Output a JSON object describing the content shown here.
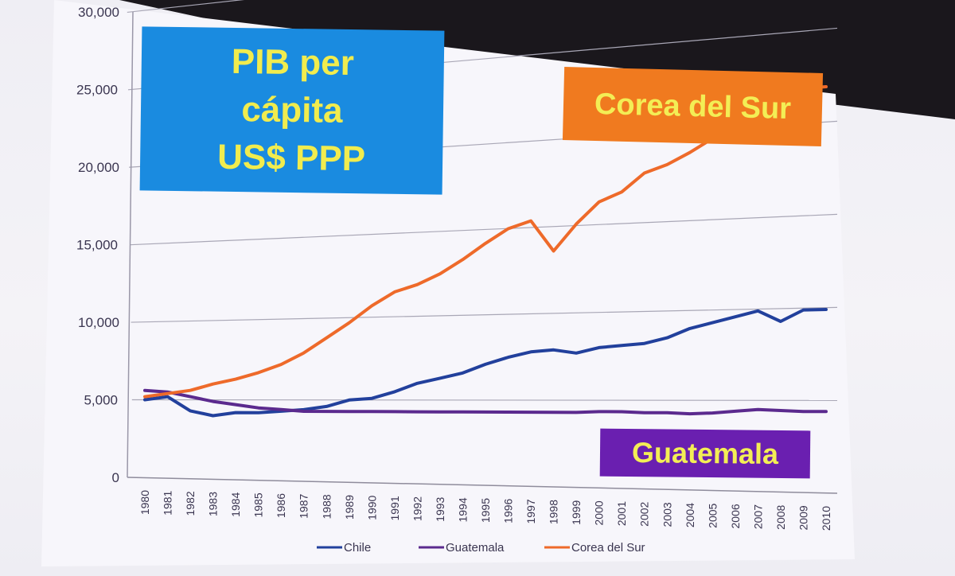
{
  "chart_data": {
    "type": "line",
    "title": "PIB per\ncápita\nUS$ PPP",
    "categories": [
      "1980",
      "1981",
      "1982",
      "1983",
      "1984",
      "1985",
      "1986",
      "1987",
      "1988",
      "1989",
      "1990",
      "1991",
      "1992",
      "1993",
      "1994",
      "1995",
      "1996",
      "1997",
      "1998",
      "1999",
      "2000",
      "2001",
      "2002",
      "2003",
      "2004",
      "2005",
      "2006",
      "2007",
      "2008",
      "2009",
      "2010"
    ],
    "y_ticks": [
      "0",
      "5,000",
      "10,000",
      "15,000",
      "20,000",
      "25,000",
      "30,000"
    ],
    "ylim": [
      0,
      30000
    ],
    "grid": true,
    "legend_position": "bottom",
    "series": [
      {
        "name": "Chile",
        "color": "#22409c",
        "values": [
          5000,
          5200,
          4300,
          4000,
          4200,
          4200,
          4300,
          4400,
          4600,
          5000,
          5100,
          5500,
          6000,
          6300,
          6600,
          7100,
          7500,
          7800,
          7900,
          7700,
          8000,
          8100,
          8200,
          8500,
          9000,
          9300,
          9600,
          9900,
          9300,
          9900,
          9900
        ]
      },
      {
        "name": "Guatemala",
        "color": "#5b2a8e",
        "values": [
          5600,
          5500,
          5200,
          4900,
          4700,
          4500,
          4400,
          4300,
          4300,
          4300,
          4300,
          4300,
          4300,
          4300,
          4300,
          4300,
          4300,
          4300,
          4300,
          4300,
          4350,
          4350,
          4300,
          4300,
          4250,
          4300,
          4400,
          4500,
          4450,
          4400,
          4400
        ]
      },
      {
        "name": "Corea del Sur",
        "color": "#ee6a2a",
        "values": [
          5200,
          5400,
          5600,
          6000,
          6300,
          6700,
          7200,
          7900,
          8800,
          9700,
          10700,
          11500,
          11900,
          12500,
          13300,
          14200,
          15000,
          15400,
          13600,
          15100,
          16300,
          16800,
          17800,
          18200,
          18800,
          19500,
          20300,
          20600,
          20200,
          21900,
          21900
        ]
      }
    ]
  },
  "labels": {
    "korea": "Corea del Sur",
    "guatemala": "Guatemala"
  },
  "colors": {
    "title_box": "#1a8be0",
    "korea_box": "#f07a1f",
    "guatemala_box": "#6a1fb0",
    "label_text": "#f1ec4e"
  }
}
